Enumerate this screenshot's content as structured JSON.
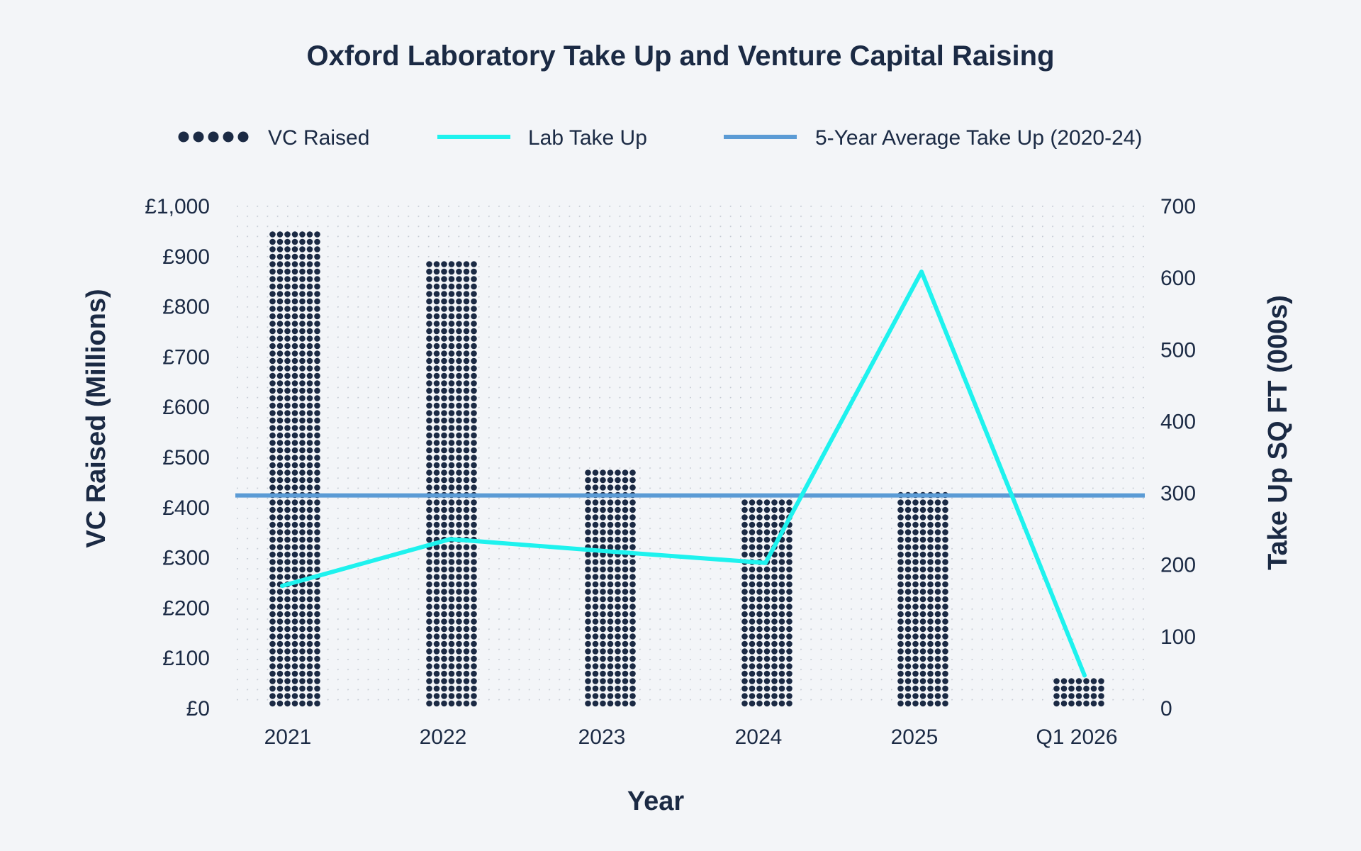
{
  "colors": {
    "background": "#f3f5f8",
    "text": "#1b2a44",
    "vc_dots": "#1b2a44",
    "lab_line": "#1ef2ee",
    "avg_line": "#5b9bd5",
    "grid_dots": "#c4cad3"
  },
  "chart_data": {
    "type": "bar",
    "title": "Oxford Laboratory Take Up and Venture Capital Raising",
    "xlabel": "Year",
    "ylabel_left": "VC Raised (Millions)",
    "ylabel_right": "Take Up SQ FT (000s)",
    "categories": [
      "2021",
      "2022",
      "2023",
      "2024",
      "2025",
      "Q1 2026"
    ],
    "ylim_left": [
      0,
      1000
    ],
    "ylim_right": [
      0,
      700
    ],
    "yticks_left": [
      "£0",
      "£100",
      "£200",
      "£300",
      "£400",
      "£500",
      "£600",
      "£700",
      "£800",
      "£900",
      "£1,000"
    ],
    "yticks_right": [
      "0",
      "100",
      "200",
      "300",
      "400",
      "500",
      "600",
      "700"
    ],
    "grid": "dotted",
    "legend_position": "top",
    "series": [
      {
        "name": "VC Raised",
        "type": "bar",
        "axis": "left",
        "marker": "dots",
        "values": [
          945,
          880,
          475,
          415,
          430,
          55
        ]
      },
      {
        "name": "Lab Take Up",
        "type": "line",
        "axis": "right",
        "values": [
          170,
          235,
          218,
          202,
          608,
          45
        ]
      },
      {
        "name": "5-Year Average Take Up (2020-24)",
        "type": "hline",
        "axis": "right",
        "value": 296
      }
    ]
  }
}
